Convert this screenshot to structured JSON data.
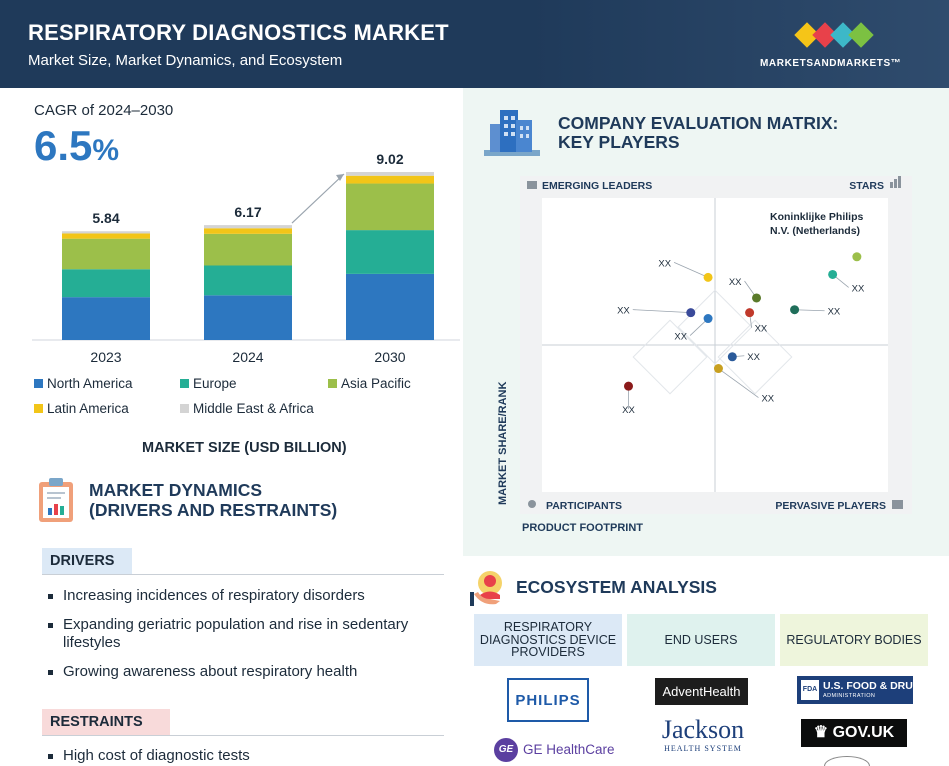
{
  "header": {
    "title": "RESPIRATORY DIAGNOSTICS MARKET",
    "subtitle": "Market Size, Market Dynamics, and Ecosystem",
    "logo_text": "MARKETSANDMARKETS™",
    "logo_colors": [
      "#f5c518",
      "#e8414a",
      "#3db8c8",
      "#7cc142"
    ]
  },
  "cagr": {
    "label": "CAGR of 2024–2030",
    "value": "6.5",
    "unit": "%"
  },
  "chart_data": {
    "type": "bar",
    "stacked": true,
    "categories": [
      "2023",
      "2024",
      "2030"
    ],
    "totals": [
      "5.84",
      "6.17",
      "9.02"
    ],
    "series": [
      {
        "name": "North America",
        "color": "#2d77c0",
        "values": [
          2.3,
          2.4,
          3.55
        ]
      },
      {
        "name": "Europe",
        "color": "#25ae95",
        "values": [
          1.5,
          1.6,
          2.35
        ]
      },
      {
        "name": "Asia Pacific",
        "color": "#9cbf4a",
        "values": [
          1.64,
          1.7,
          2.5
        ]
      },
      {
        "name": "Latin America",
        "color": "#f2c518",
        "values": [
          0.28,
          0.3,
          0.42
        ]
      },
      {
        "name": "Middle East & Africa",
        "color": "#d4d4d4",
        "values": [
          0.12,
          0.17,
          0.2
        ]
      }
    ],
    "xlabel": "MARKET SIZE (USD BILLION)",
    "ylabel": "",
    "ylim": [
      0,
      9.02
    ]
  },
  "dynamics": {
    "title_line1": "MARKET DYNAMICS",
    "title_line2": "(DRIVERS AND RESTRAINTS)",
    "drivers_label": "DRIVERS",
    "drivers": [
      "Increasing incidences of respiratory disorders",
      "Expanding geriatric population and rise in sedentary lifestyles",
      "Growing awareness about respiratory health"
    ],
    "restraints_label": "RESTRAINTS",
    "restraints": [
      "High cost of diagnostic tests"
    ]
  },
  "matrix": {
    "title_line1": "COMPANY EVALUATION MATRIX:",
    "title_line2": "KEY PLAYERS",
    "quadrants": {
      "top_left": "EMERGING LEADERS",
      "top_right": "STARS",
      "bottom_left": "PARTICIPANTS",
      "bottom_right": "PERVASIVE PLAYERS"
    },
    "y_axis": "MARKET SHARE/RANK",
    "x_axis": "PRODUCT FOOTPRINT",
    "highlight_line1": "Koninklijke Philips",
    "highlight_line2": "N.V. (Netherlands)",
    "point_label": "XX",
    "points": [
      {
        "color": "#9cbf4a",
        "footprint": 0.91,
        "share": 0.8
      },
      {
        "color": "#25ae95",
        "footprint": 0.84,
        "share": 0.74
      },
      {
        "color": "#f2c518",
        "footprint": 0.48,
        "share": 0.73
      },
      {
        "color": "#5a7a2a",
        "footprint": 0.62,
        "share": 0.66
      },
      {
        "color": "#1f6e5a",
        "footprint": 0.73,
        "share": 0.62
      },
      {
        "color": "#c0392b",
        "footprint": 0.6,
        "share": 0.61
      },
      {
        "color": "#3a4a9a",
        "footprint": 0.43,
        "share": 0.61
      },
      {
        "color": "#2d77c0",
        "footprint": 0.48,
        "share": 0.59
      },
      {
        "color": "#2a5a9a",
        "footprint": 0.55,
        "share": 0.46
      },
      {
        "color": "#c8a020",
        "footprint": 0.51,
        "share": 0.42
      },
      {
        "color": "#8b1a1a",
        "footprint": 0.25,
        "share": 0.36
      }
    ]
  },
  "ecosystem": {
    "title": "ECOSYSTEM ANALYSIS",
    "columns": [
      {
        "label": "RESPIRATORY DIAGNOSTICS DEVICE PROVIDERS"
      },
      {
        "label": "END USERS"
      },
      {
        "label": "REGULATORY BODIES"
      }
    ],
    "logos": {
      "philips": "PHILIPS",
      "ge_mark": "GE",
      "ge": "GE HealthCare",
      "advent": "AdventHealth",
      "jackson_1": "Jackson",
      "jackson_2": "HEALTH SYSTEM",
      "fda_mark": "FDA",
      "fda_1": "U.S. FOOD & DRUG",
      "fda_2": "ADMINISTRATION",
      "gov": "GOV.UK"
    }
  }
}
